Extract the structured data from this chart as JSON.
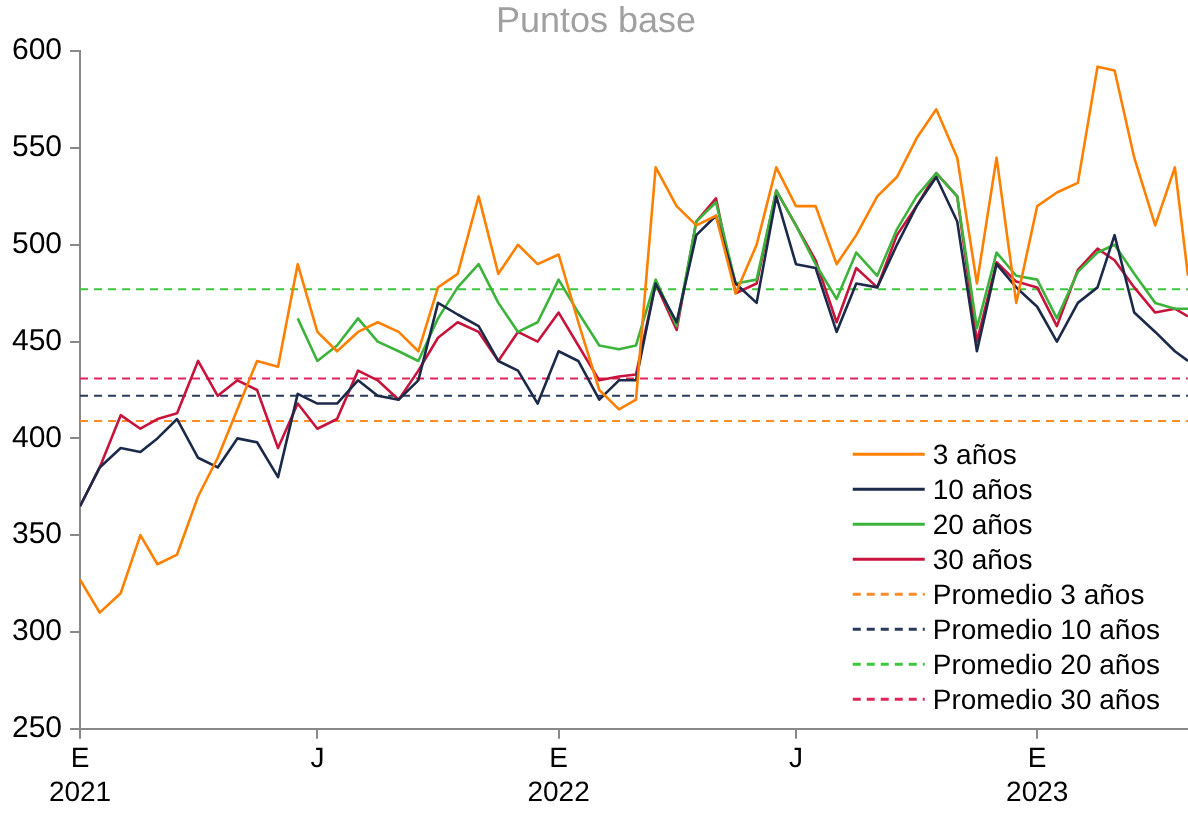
{
  "chart_data": {
    "type": "line",
    "title": "Puntos base",
    "x": [
      "2021-01-01",
      "2021-01-16",
      "2021-02-01",
      "2021-02-16",
      "2021-03-01",
      "2021-03-16",
      "2021-04-01",
      "2021-04-16",
      "2021-05-01",
      "2021-05-16",
      "2021-06-01",
      "2021-06-16",
      "2021-07-01",
      "2021-07-16",
      "2021-08-01",
      "2021-08-16",
      "2021-09-01",
      "2021-09-16",
      "2021-10-01",
      "2021-10-16",
      "2021-11-01",
      "2021-11-16",
      "2021-12-01",
      "2021-12-16",
      "2022-01-01",
      "2022-01-16",
      "2022-02-01",
      "2022-02-16",
      "2022-03-01",
      "2022-03-16",
      "2022-04-01",
      "2022-04-16",
      "2022-05-01",
      "2022-05-16",
      "2022-06-01",
      "2022-06-16",
      "2022-07-01",
      "2022-07-16",
      "2022-08-01",
      "2022-08-16",
      "2022-09-01",
      "2022-09-16",
      "2022-10-01",
      "2022-10-16",
      "2022-11-01",
      "2022-11-16",
      "2022-12-01",
      "2022-12-16",
      "2023-01-01",
      "2023-01-16",
      "2023-02-01",
      "2023-02-16",
      "2023-03-01",
      "2023-03-16",
      "2023-04-01",
      "2023-04-16",
      "2023-04-26"
    ],
    "series": [
      {
        "name": "3 años",
        "color": "#ff8000",
        "values": [
          327,
          310,
          320,
          350,
          335,
          340,
          370,
          390,
          415,
          440,
          437,
          490,
          455,
          445,
          455,
          460,
          455,
          445,
          478,
          485,
          525,
          485,
          500,
          490,
          495,
          460,
          425,
          415,
          420,
          540,
          520,
          510,
          515,
          475,
          500,
          540,
          520,
          520,
          490,
          505,
          525,
          535,
          555,
          570,
          545,
          480,
          545,
          470,
          520,
          527,
          532,
          592,
          590,
          545,
          510,
          540,
          484
        ]
      },
      {
        "name": "10 años",
        "color": "#1c2a4a",
        "values": [
          365,
          385,
          395,
          393,
          400,
          410,
          390,
          385,
          400,
          398,
          380,
          423,
          418,
          418,
          430,
          422,
          420,
          430,
          470,
          464,
          458,
          440,
          435,
          418,
          445,
          440,
          420,
          430,
          430,
          480,
          460,
          505,
          515,
          480,
          470,
          525,
          490,
          488,
          455,
          480,
          478,
          500,
          520,
          535,
          512,
          445,
          490,
          478,
          468,
          450,
          470,
          478,
          505,
          465,
          455,
          445,
          440
        ]
      },
      {
        "name": "20 años",
        "color": "#3cb43c",
        "values": [
          null,
          null,
          null,
          null,
          null,
          null,
          null,
          null,
          null,
          null,
          null,
          462,
          440,
          448,
          462,
          450,
          445,
          440,
          462,
          478,
          490,
          470,
          455,
          460,
          482,
          465,
          448,
          446,
          448,
          482,
          458,
          512,
          522,
          480,
          482,
          528,
          510,
          490,
          472,
          496,
          484,
          508,
          525,
          537,
          525,
          457,
          496,
          484,
          482,
          462,
          486,
          496,
          500,
          485,
          470,
          467,
          467
        ]
      },
      {
        "name": "30 años",
        "color": "#c8143c",
        "values": [
          365,
          385,
          412,
          405,
          410,
          413,
          440,
          422,
          430,
          425,
          395,
          418,
          405,
          410,
          435,
          430,
          420,
          435,
          452,
          460,
          455,
          440,
          455,
          450,
          465,
          448,
          430,
          432,
          433,
          480,
          456,
          512,
          524,
          475,
          480,
          528,
          510,
          492,
          460,
          488,
          478,
          505,
          520,
          537,
          525,
          450,
          491,
          481,
          478,
          458,
          487,
          498,
          492,
          478,
          465,
          467,
          463
        ]
      }
    ],
    "ref_lines": [
      {
        "axis": "y",
        "value": 409,
        "label": "Promedio 3 años",
        "color": "#ff8c28",
        "line_style": "dashed"
      },
      {
        "axis": "y",
        "value": 422,
        "label": "Promedio 10 años",
        "color": "#2a3a5a",
        "line_style": "dashed"
      },
      {
        "axis": "y",
        "value": 477,
        "label": "Promedio 20 años",
        "color": "#3cc83c",
        "line_style": "dashed"
      },
      {
        "axis": "y",
        "value": 431,
        "label": "Promedio 30 años",
        "color": "#e0245a",
        "line_style": "dashed"
      }
    ],
    "xlim": [
      "2021-01-01",
      "2023-04-26"
    ],
    "xticks": [
      {
        "value": "2021-01-01",
        "label": "E\n2021"
      },
      {
        "value": "2021-07-01",
        "label": "J"
      },
      {
        "value": "2022-01-01",
        "label": "E\n2022"
      },
      {
        "value": "2022-07-01",
        "label": "J"
      },
      {
        "value": "2023-01-01",
        "label": "E\n2023"
      }
    ],
    "ylim": [
      250,
      600
    ],
    "yticks": [
      250,
      300,
      350,
      400,
      450,
      500,
      550,
      600
    ],
    "grid": false,
    "legend": "bottom right",
    "marker": "none",
    "line_style": "solid"
  }
}
